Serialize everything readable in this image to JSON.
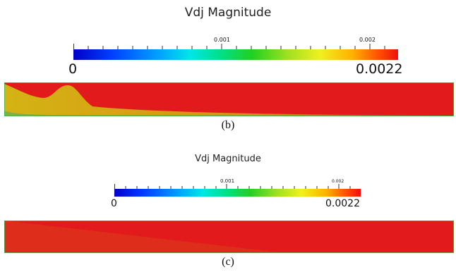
{
  "panel_b": {
    "title": "Vdj Magnitude",
    "colorbar_min_label": "0",
    "colorbar_max_label": "0.0022",
    "colorbar_tick_001": "0.001",
    "colorbar_tick_002": "0.002",
    "caption": "(b)"
  },
  "panel_c": {
    "title": "Vdj Magnitude",
    "colorbar_min_label": "0",
    "colorbar_max_label": "0.0022",
    "colorbar_tick_001": "0.001",
    "colorbar_tick_002": "0.002",
    "caption": "(c)"
  },
  "colormap_colors": [
    "#0000c8",
    "#00a0ff",
    "#00e6e6",
    "#20d020",
    "#f0f020",
    "#ffb000",
    "#ee1010"
  ],
  "field_colors": {
    "high": "#e31a1c",
    "mid": "#d4b414",
    "border": "#3cb44a"
  }
}
